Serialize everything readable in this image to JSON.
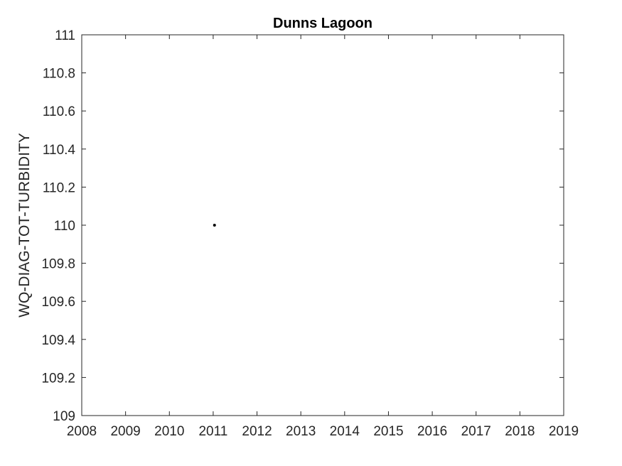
{
  "chart_data": {
    "type": "scatter",
    "title": "Dunns Lagoon",
    "xlabel": "",
    "ylabel": "WQ-DIAG-TOT-TURBIDITY",
    "xlim": [
      2008,
      2019
    ],
    "ylim": [
      109,
      111
    ],
    "x_ticks": [
      "2008",
      "2009",
      "2010",
      "2011",
      "2012",
      "2013",
      "2014",
      "2015",
      "2016",
      "2017",
      "2018",
      "2019"
    ],
    "y_ticks": [
      "109",
      "109.2",
      "109.4",
      "109.6",
      "109.8",
      "110",
      "110.2",
      "110.4",
      "110.6",
      "110.8",
      "111"
    ],
    "grid": false,
    "series": [
      {
        "points": [
          {
            "x": 2011.03,
            "y": 110
          }
        ]
      }
    ],
    "colors": {
      "marker": "#000000",
      "axis": "#262626"
    }
  }
}
